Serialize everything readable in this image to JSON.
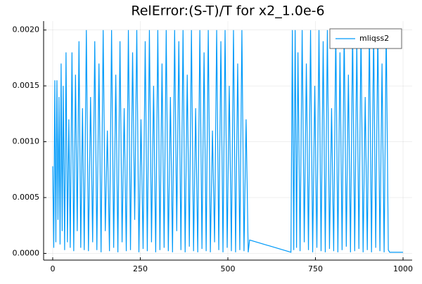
{
  "chart_data": {
    "type": "line",
    "title": "RelError:(S-T)/T for x2_1.0e-6",
    "x": [
      0,
      3,
      6,
      9,
      12,
      15,
      18,
      21,
      24,
      27,
      30,
      34,
      38,
      42,
      46,
      50,
      55,
      60,
      65,
      70,
      75,
      80,
      85,
      90,
      96,
      102,
      108,
      114,
      120,
      126,
      132,
      138,
      144,
      150,
      156,
      162,
      168,
      174,
      180,
      186,
      192,
      198,
      204,
      210,
      216,
      222,
      228,
      234,
      240,
      246,
      252,
      258,
      264,
      270,
      276,
      282,
      288,
      294,
      300,
      306,
      312,
      318,
      324,
      330,
      336,
      342,
      348,
      354,
      360,
      366,
      372,
      378,
      384,
      390,
      396,
      402,
      408,
      414,
      420,
      426,
      432,
      438,
      444,
      450,
      456,
      462,
      468,
      474,
      480,
      486,
      492,
      498,
      504,
      510,
      516,
      522,
      528,
      534,
      540,
      546,
      552,
      558,
      562,
      680,
      684,
      688,
      692,
      696,
      700,
      706,
      712,
      718,
      724,
      730,
      736,
      742,
      748,
      754,
      760,
      766,
      772,
      778,
      784,
      790,
      796,
      802,
      808,
      814,
      820,
      826,
      832,
      838,
      844,
      850,
      856,
      862,
      868,
      874,
      880,
      886,
      892,
      898,
      904,
      910,
      916,
      922,
      928,
      934,
      940,
      946,
      952,
      958,
      962,
      980,
      1000
    ],
    "series": [
      {
        "name": "mliqss2",
        "color": "#009af9",
        "values": [
          0.00078,
          5e-05,
          0.00155,
          0.0001,
          0.00155,
          0.0003,
          0.0014,
          8e-05,
          0.0017,
          0.0002,
          0.0015,
          3e-05,
          0.0018,
          0.0001,
          0.0012,
          5e-05,
          0.0018,
          2e-05,
          0.0016,
          0.0002,
          0.0019,
          5e-05,
          0.0013,
          3e-05,
          0.002,
          2e-05,
          0.0014,
          0.0001,
          0.0019,
          3e-05,
          0.0017,
          1e-05,
          0.002,
          0.0002,
          0.0011,
          2e-05,
          0.002,
          5e-05,
          0.0016,
          1e-05,
          0.0019,
          0.0001,
          0.0013,
          2e-05,
          0.002,
          3e-05,
          0.0018,
          0.0003,
          0.002,
          1e-05,
          0.0012,
          4e-05,
          0.0019,
          2e-05,
          0.002,
          0.0001,
          0.0015,
          1e-05,
          0.002,
          3e-05,
          0.0017,
          5e-05,
          0.002,
          2e-05,
          0.0014,
          1e-05,
          0.002,
          0.0002,
          0.0019,
          3e-05,
          0.002,
          1e-05,
          0.0016,
          6e-05,
          0.002,
          2e-05,
          0.0013,
          1e-05,
          0.002,
          4e-05,
          0.0018,
          2e-05,
          0.002,
          1e-05,
          0.0011,
          0.0001,
          0.002,
          3e-05,
          0.0019,
          1e-05,
          0.002,
          5e-05,
          0.0015,
          2e-05,
          0.002,
          1e-05,
          0.0017,
          3e-05,
          0.002,
          2e-05,
          0.0012,
          1e-05,
          0.00012,
          1e-05,
          0.002,
          3e-05,
          0.002,
          5e-05,
          0.0018,
          2e-05,
          0.002,
          0.0001,
          0.0017,
          3e-05,
          0.002,
          1e-05,
          0.0015,
          5e-05,
          0.002,
          2e-05,
          0.0019,
          1e-05,
          0.002,
          4e-05,
          0.0013,
          2e-05,
          0.002,
          1e-05,
          0.0018,
          3e-05,
          0.002,
          6e-05,
          0.0016,
          1e-05,
          0.002,
          2e-05,
          0.0019,
          4e-05,
          0.002,
          1e-05,
          0.0014,
          3e-05,
          0.002,
          1e-05,
          0.002,
          5e-05,
          0.002,
          2e-05,
          0.0017,
          1e-05,
          0.002,
          3e-05,
          1e-05,
          1e-05,
          1e-05
        ]
      }
    ],
    "xlim": [
      -26,
      1026
    ],
    "xticks": [
      0,
      250,
      500,
      750,
      1000
    ],
    "ylim": [
      -6e-05,
      0.00208
    ],
    "yticks": [
      {
        "value": 0,
        "label": "0.0000"
      },
      {
        "value": 0.0005,
        "label": "0.0005"
      },
      {
        "value": 0.001,
        "label": "0.0010"
      },
      {
        "value": 0.0015,
        "label": "0.0015"
      },
      {
        "value": 0.002,
        "label": "0.0020"
      }
    ],
    "grid": true,
    "legend": "top-right"
  }
}
